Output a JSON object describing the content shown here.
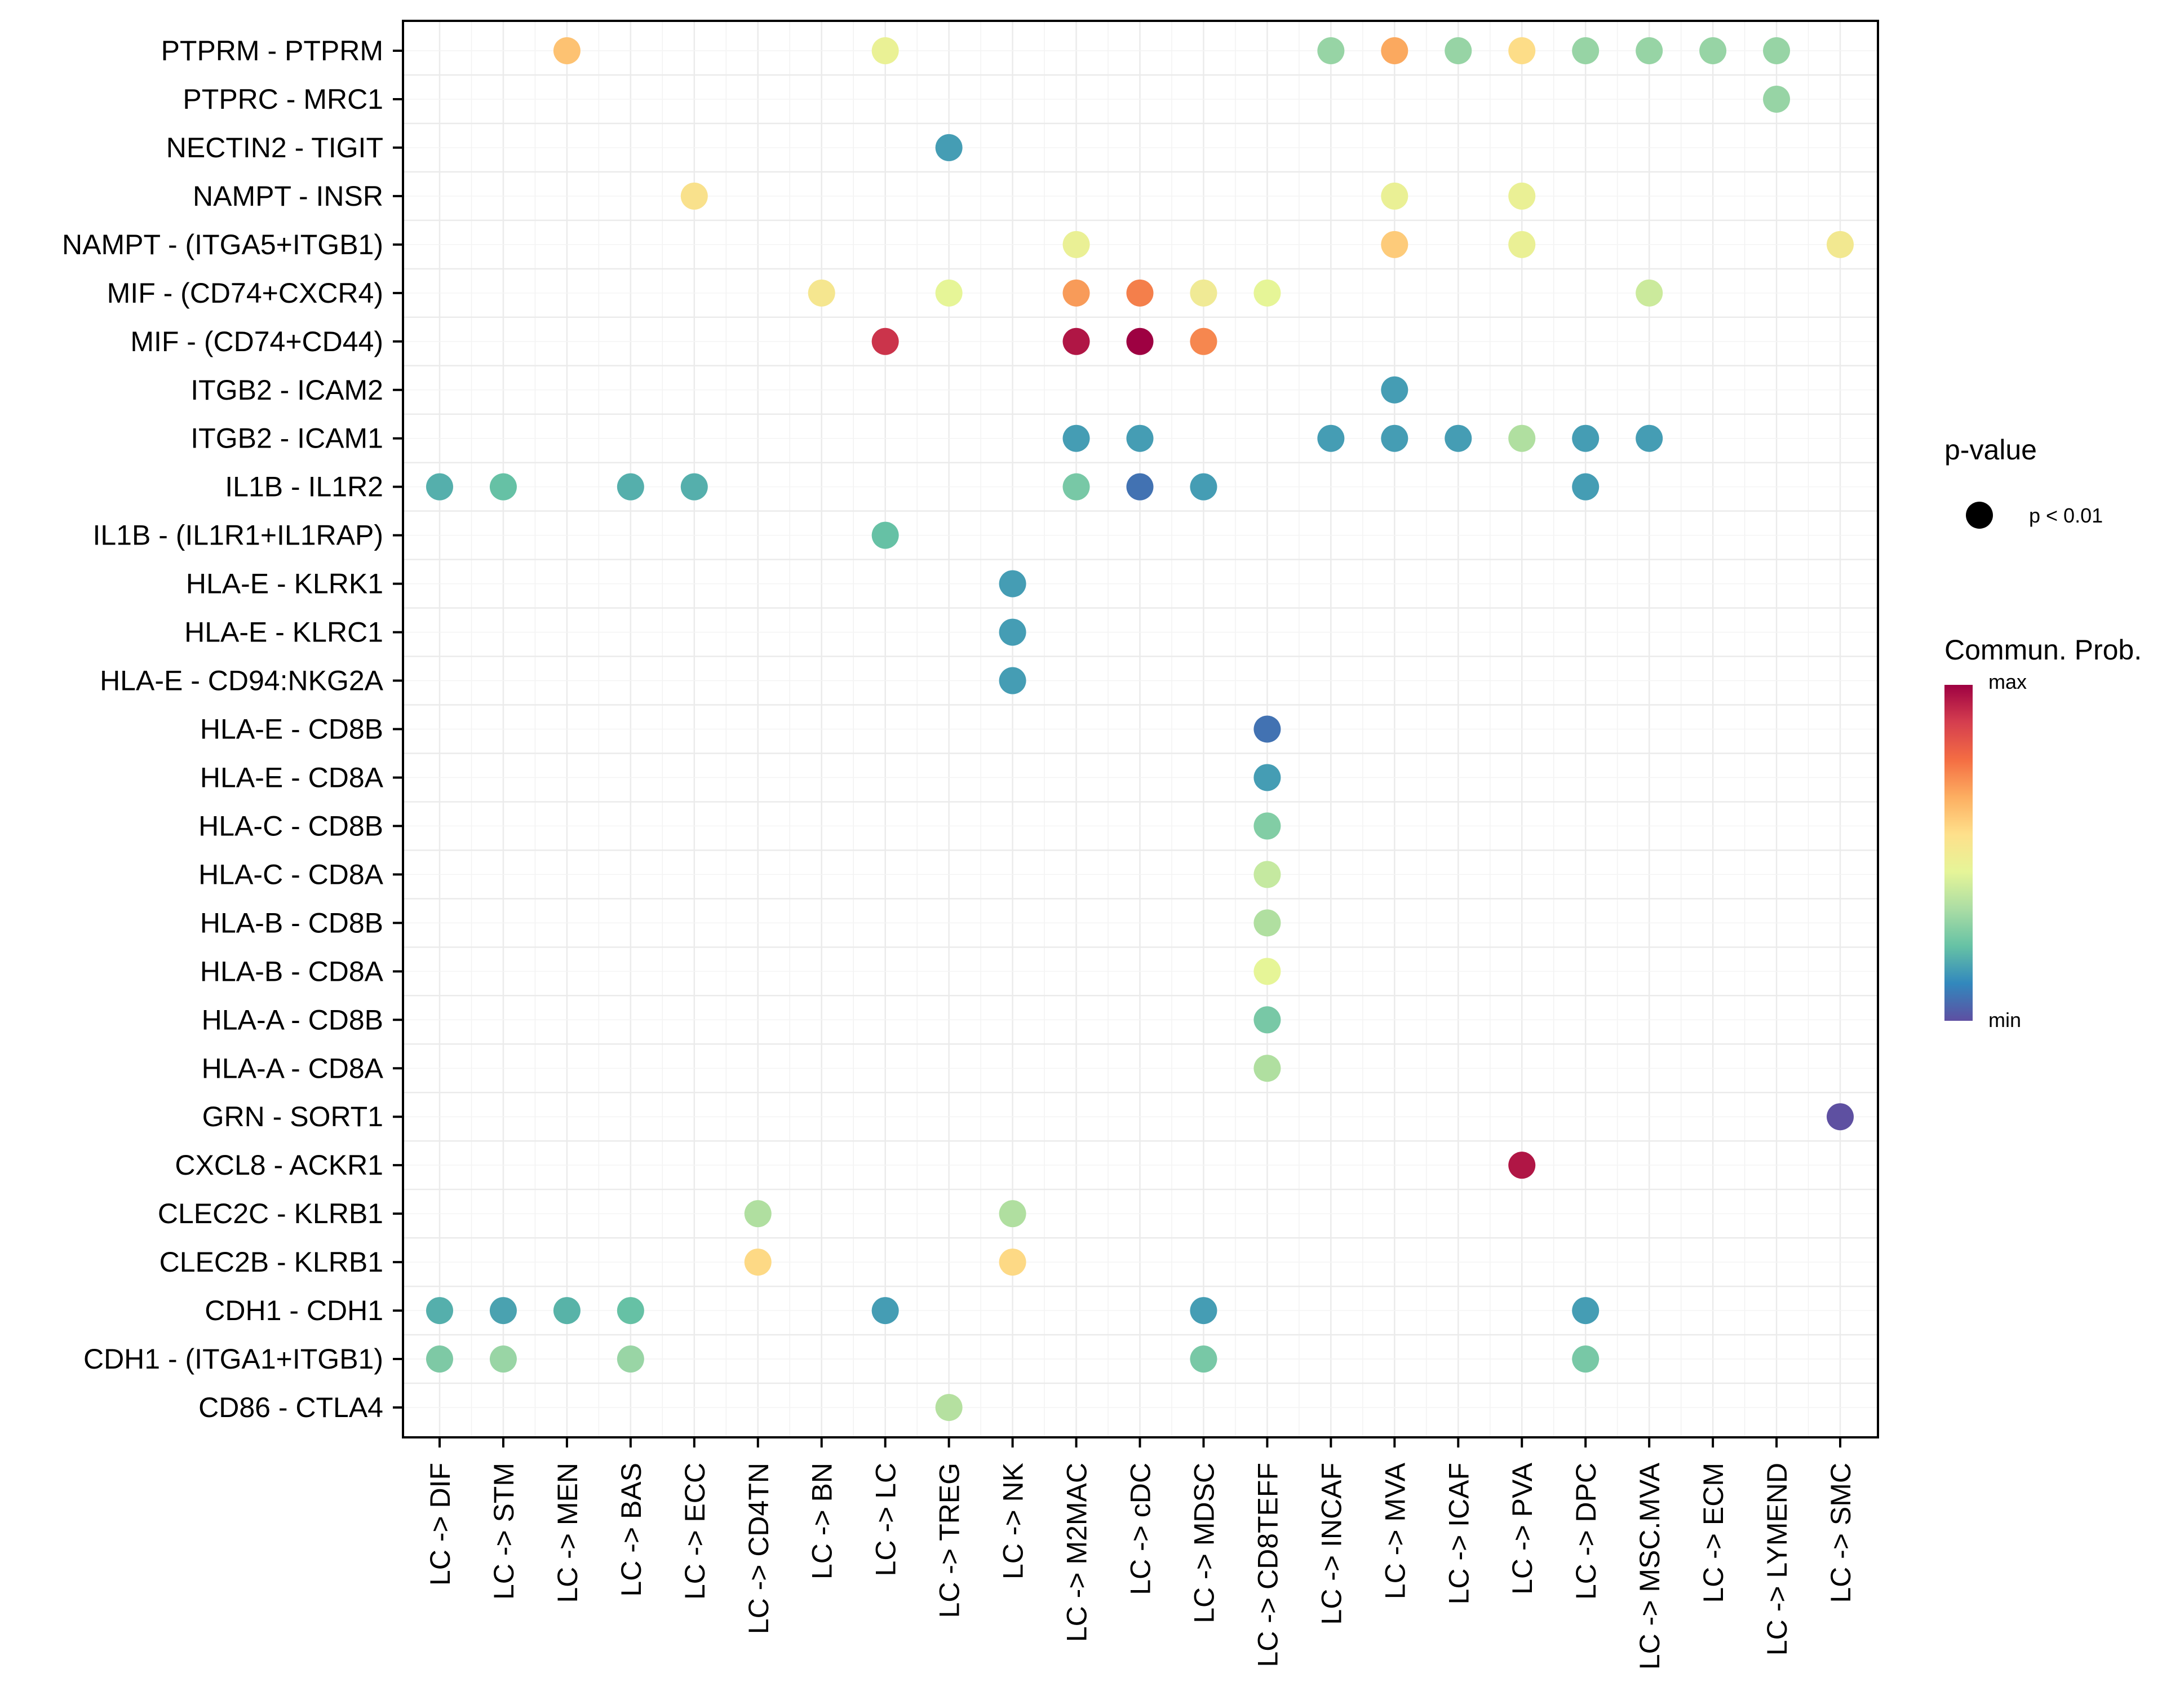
{
  "chart_data": {
    "type": "scatter",
    "subtype": "dot-matrix",
    "title": "",
    "xlabel": "",
    "ylabel": "",
    "grid": true,
    "categories_x": [
      "LC -> DIF",
      "LC -> STM",
      "LC -> MEN",
      "LC -> BAS",
      "LC -> ECC",
      "LC -> CD4TN",
      "LC -> BN",
      "LC -> LC",
      "LC -> TREG",
      "LC -> NK",
      "LC -> M2MAC",
      "LC -> cDC",
      "LC -> MDSC",
      "LC -> CD8TEFF",
      "LC -> INCAF",
      "LC -> MVA",
      "LC -> ICAF",
      "LC -> PVA",
      "LC -> DPC",
      "LC -> MSC.MVA",
      "LC -> ECM",
      "LC -> LYMEND",
      "LC -> SMC"
    ],
    "categories_y": [
      "PTPRM - PTPRM",
      "PTPRC - MRC1",
      "NECTIN2 - TIGIT",
      "NAMPT - INSR",
      "NAMPT - (ITGA5+ITGB1)",
      "MIF - (CD74+CXCR4)",
      "MIF - (CD74+CD44)",
      "ITGB2 - ICAM2",
      "ITGB2 - ICAM1",
      "IL1B - IL1R2",
      "IL1B - (IL1R1+IL1RAP)",
      "HLA-E - KLRK1",
      "HLA-E - KLRC1",
      "HLA-E - CD94:NKG2A",
      "HLA-E - CD8B",
      "HLA-E - CD8A",
      "HLA-C - CD8B",
      "HLA-C - CD8A",
      "HLA-B - CD8B",
      "HLA-B - CD8A",
      "HLA-A - CD8B",
      "HLA-A - CD8A",
      "GRN - SORT1",
      "CXCL8 - ACKR1",
      "CLEC2C - KLRB1",
      "CLEC2B - KLRB1",
      "CDH1 - CDH1",
      "CDH1 - (ITGA1+ITGB1)",
      "CD86 - CTLA4"
    ],
    "points": [
      {
        "y": "PTPRM - PTPRM",
        "x": "LC -> MEN",
        "prob": 0.68,
        "color": "#fdc272"
      },
      {
        "y": "PTPRM - PTPRM",
        "x": "LC -> LC",
        "prob": 0.5,
        "color": "#eaf195"
      },
      {
        "y": "PTPRM - PTPRM",
        "x": "LC -> INCAF",
        "prob": 0.33,
        "color": "#97d4a5"
      },
      {
        "y": "PTPRM - PTPRM",
        "x": "LC -> MVA",
        "prob": 0.72,
        "color": "#fba95f"
      },
      {
        "y": "PTPRM - PTPRM",
        "x": "LC -> ICAF",
        "prob": 0.33,
        "color": "#97d4a5"
      },
      {
        "y": "PTPRM - PTPRM",
        "x": "LC -> PVA",
        "prob": 0.6,
        "color": "#fddd88"
      },
      {
        "y": "PTPRM - PTPRM",
        "x": "LC -> DPC",
        "prob": 0.33,
        "color": "#97d4a5"
      },
      {
        "y": "PTPRM - PTPRM",
        "x": "LC -> MSC.MVA",
        "prob": 0.33,
        "color": "#97d4a5"
      },
      {
        "y": "PTPRM - PTPRM",
        "x": "LC -> ECM",
        "prob": 0.33,
        "color": "#97d4a5"
      },
      {
        "y": "PTPRM - PTPRM",
        "x": "LC -> LYMEND",
        "prob": 0.33,
        "color": "#97d4a5"
      },
      {
        "y": "PTPRC - MRC1",
        "x": "LC -> LYMEND",
        "prob": 0.33,
        "color": "#97d4a5"
      },
      {
        "y": "NECTIN2 - TIGIT",
        "x": "LC -> TREG",
        "prob": 0.15,
        "color": "#459db4"
      },
      {
        "y": "NAMPT - INSR",
        "x": "LC -> ECC",
        "prob": 0.58,
        "color": "#f9e18c"
      },
      {
        "y": "NAMPT - INSR",
        "x": "LC -> MVA",
        "prob": 0.5,
        "color": "#eaf095"
      },
      {
        "y": "NAMPT - INSR",
        "x": "LC -> PVA",
        "prob": 0.5,
        "color": "#eaf095"
      },
      {
        "y": "NAMPT - (ITGA5+ITGB1)",
        "x": "LC -> M2MAC",
        "prob": 0.5,
        "color": "#eaf095"
      },
      {
        "y": "NAMPT - (ITGA5+ITGB1)",
        "x": "LC -> MVA",
        "prob": 0.64,
        "color": "#fdcb7a"
      },
      {
        "y": "NAMPT - (ITGA5+ITGB1)",
        "x": "LC -> PVA",
        "prob": 0.5,
        "color": "#eaf095"
      },
      {
        "y": "NAMPT - (ITGA5+ITGB1)",
        "x": "LC -> SMC",
        "prob": 0.55,
        "color": "#f2e890"
      },
      {
        "y": "MIF - (CD74+CXCR4)",
        "x": "LC -> BN",
        "prob": 0.56,
        "color": "#f5e68f"
      },
      {
        "y": "MIF - (CD74+CXCR4)",
        "x": "LC -> TREG",
        "prob": 0.49,
        "color": "#e6f597"
      },
      {
        "y": "MIF - (CD74+CXCR4)",
        "x": "LC -> M2MAC",
        "prob": 0.76,
        "color": "#f89b59"
      },
      {
        "y": "MIF - (CD74+CXCR4)",
        "x": "LC -> cDC",
        "prob": 0.8,
        "color": "#f47f4b"
      },
      {
        "y": "MIF - (CD74+CXCR4)",
        "x": "LC -> MDSC",
        "prob": 0.54,
        "color": "#f0ea95"
      },
      {
        "y": "MIF - (CD74+CXCR4)",
        "x": "LC -> CD8TEFF",
        "prob": 0.49,
        "color": "#e6f597"
      },
      {
        "y": "MIF - (CD74+CXCR4)",
        "x": "LC -> MSC.MVA",
        "prob": 0.45,
        "color": "#cbea9c"
      },
      {
        "y": "MIF - (CD74+CD44)",
        "x": "LC -> LC",
        "prob": 0.9,
        "color": "#cb344b"
      },
      {
        "y": "MIF - (CD74+CD44)",
        "x": "LC -> M2MAC",
        "prob": 0.96,
        "color": "#b01645"
      },
      {
        "y": "MIF - (CD74+CD44)",
        "x": "LC -> cDC",
        "prob": 1.0,
        "color": "#9e0142"
      },
      {
        "y": "MIF - (CD74+CD44)",
        "x": "LC -> MDSC",
        "prob": 0.78,
        "color": "#f6874f"
      },
      {
        "y": "ITGB2 - ICAM2",
        "x": "LC -> MVA",
        "prob": 0.15,
        "color": "#459db4"
      },
      {
        "y": "ITGB2 - ICAM1",
        "x": "LC -> M2MAC",
        "prob": 0.15,
        "color": "#459db4"
      },
      {
        "y": "ITGB2 - ICAM1",
        "x": "LC -> cDC",
        "prob": 0.15,
        "color": "#459db4"
      },
      {
        "y": "ITGB2 - ICAM1",
        "x": "LC -> INCAF",
        "prob": 0.15,
        "color": "#459db4"
      },
      {
        "y": "ITGB2 - ICAM1",
        "x": "LC -> MVA",
        "prob": 0.15,
        "color": "#459db4"
      },
      {
        "y": "ITGB2 - ICAM1",
        "x": "LC -> ICAF",
        "prob": 0.15,
        "color": "#459db4"
      },
      {
        "y": "ITGB2 - ICAM1",
        "x": "LC -> PVA",
        "prob": 0.38,
        "color": "#b0dfa0"
      },
      {
        "y": "ITGB2 - ICAM1",
        "x": "LC -> DPC",
        "prob": 0.15,
        "color": "#459db4"
      },
      {
        "y": "ITGB2 - ICAM1",
        "x": "LC -> MSC.MVA",
        "prob": 0.15,
        "color": "#459db4"
      },
      {
        "y": "IL1B - IL1R2",
        "x": "LC -> DIF",
        "prob": 0.22,
        "color": "#55afac"
      },
      {
        "y": "IL1B - IL1R2",
        "x": "LC -> STM",
        "prob": 0.27,
        "color": "#66c1a5"
      },
      {
        "y": "IL1B - IL1R2",
        "x": "LC -> BAS",
        "prob": 0.22,
        "color": "#55afac"
      },
      {
        "y": "IL1B - IL1R2",
        "x": "LC -> ECC",
        "prob": 0.22,
        "color": "#55afac"
      },
      {
        "y": "IL1B - IL1R2",
        "x": "LC -> M2MAC",
        "prob": 0.29,
        "color": "#78c8a6"
      },
      {
        "y": "IL1B - IL1R2",
        "x": "LC -> cDC",
        "prob": 0.07,
        "color": "#4272b2"
      },
      {
        "y": "IL1B - IL1R2",
        "x": "LC -> MDSC",
        "prob": 0.15,
        "color": "#459db4"
      },
      {
        "y": "IL1B - IL1R2",
        "x": "LC -> DPC",
        "prob": 0.15,
        "color": "#459db4"
      },
      {
        "y": "IL1B - (IL1R1+IL1RAP)",
        "x": "LC -> LC",
        "prob": 0.27,
        "color": "#66c1a5"
      },
      {
        "y": "HLA-E - KLRK1",
        "x": "LC -> NK",
        "prob": 0.15,
        "color": "#459db4"
      },
      {
        "y": "HLA-E - KLRC1",
        "x": "LC -> NK",
        "prob": 0.15,
        "color": "#459db4"
      },
      {
        "y": "HLA-E - CD94:NKG2A",
        "x": "LC -> NK",
        "prob": 0.15,
        "color": "#459db4"
      },
      {
        "y": "HLA-E - CD8B",
        "x": "LC -> CD8TEFF",
        "prob": 0.07,
        "color": "#4272b2"
      },
      {
        "y": "HLA-E - CD8A",
        "x": "LC -> CD8TEFF",
        "prob": 0.15,
        "color": "#459db4"
      },
      {
        "y": "HLA-C - CD8B",
        "x": "LC -> CD8TEFF",
        "prob": 0.31,
        "color": "#82cda5"
      },
      {
        "y": "HLA-C - CD8A",
        "x": "LC -> CD8TEFF",
        "prob": 0.44,
        "color": "#c5e9a0"
      },
      {
        "y": "HLA-B - CD8B",
        "x": "LC -> CD8TEFF",
        "prob": 0.38,
        "color": "#b0dfa0"
      },
      {
        "y": "HLA-B - CD8A",
        "x": "LC -> CD8TEFF",
        "prob": 0.49,
        "color": "#e6f597"
      },
      {
        "y": "HLA-A - CD8B",
        "x": "LC -> CD8TEFF",
        "prob": 0.29,
        "color": "#78c8a6"
      },
      {
        "y": "HLA-A - CD8A",
        "x": "LC -> CD8TEFF",
        "prob": 0.38,
        "color": "#b0dfa0"
      },
      {
        "y": "GRN - SORT1",
        "x": "LC -> SMC",
        "prob": 0.0,
        "color": "#5e50a1"
      },
      {
        "y": "CXCL8 - ACKR1",
        "x": "LC -> PVA",
        "prob": 0.96,
        "color": "#b01645"
      },
      {
        "y": "CLEC2C - KLRB1",
        "x": "LC -> CD4TN",
        "prob": 0.38,
        "color": "#b0dfa0"
      },
      {
        "y": "CLEC2C - KLRB1",
        "x": "LC -> NK",
        "prob": 0.38,
        "color": "#b0dfa0"
      },
      {
        "y": "CLEC2B - KLRB1",
        "x": "LC -> CD4TN",
        "prob": 0.62,
        "color": "#fdd985"
      },
      {
        "y": "CLEC2B - KLRB1",
        "x": "LC -> NK",
        "prob": 0.62,
        "color": "#fdd985"
      },
      {
        "y": "CDH1 - CDH1",
        "x": "LC -> DIF",
        "prob": 0.22,
        "color": "#55afac"
      },
      {
        "y": "CDH1 - CDH1",
        "x": "LC -> STM",
        "prob": 0.17,
        "color": "#4aa2b0"
      },
      {
        "y": "CDH1 - CDH1",
        "x": "LC -> MEN",
        "prob": 0.24,
        "color": "#58b3a8"
      },
      {
        "y": "CDH1 - CDH1",
        "x": "LC -> BAS",
        "prob": 0.27,
        "color": "#66c1a5"
      },
      {
        "y": "CDH1 - CDH1",
        "x": "LC -> LC",
        "prob": 0.15,
        "color": "#459db4"
      },
      {
        "y": "CDH1 - CDH1",
        "x": "LC -> MDSC",
        "prob": 0.15,
        "color": "#459db4"
      },
      {
        "y": "CDH1 - CDH1",
        "x": "LC -> DPC",
        "prob": 0.15,
        "color": "#459db4"
      },
      {
        "y": "CDH1 - (ITGA1+ITGB1)",
        "x": "LC -> DIF",
        "prob": 0.3,
        "color": "#7ec9a5"
      },
      {
        "y": "CDH1 - (ITGA1+ITGB1)",
        "x": "LC -> STM",
        "prob": 0.34,
        "color": "#99d5a5"
      },
      {
        "y": "CDH1 - (ITGA1+ITGB1)",
        "x": "LC -> BAS",
        "prob": 0.34,
        "color": "#99d5a5"
      },
      {
        "y": "CDH1 - (ITGA1+ITGB1)",
        "x": "LC -> MDSC",
        "prob": 0.29,
        "color": "#78c8a6"
      },
      {
        "y": "CDH1 - (ITGA1+ITGB1)",
        "x": "LC -> DPC",
        "prob": 0.29,
        "color": "#78c8a6"
      },
      {
        "y": "CD86 - CTLA4",
        "x": "LC -> TREG",
        "prob": 0.4,
        "color": "#b5e0a0"
      }
    ],
    "legend": {
      "position": "right",
      "pvalue": {
        "title": "p-value",
        "entries": [
          {
            "label": "p < 0.01",
            "color": "#000000"
          }
        ]
      },
      "colorbar": {
        "title": "Commun. Prob.",
        "max_label": "max",
        "min_label": "min",
        "palette": [
          "#5e4fa2",
          "#3288bd",
          "#66c2a5",
          "#abdda4",
          "#e6f598",
          "#fee08b",
          "#fdae61",
          "#f46d43",
          "#d53e4f",
          "#9e0142"
        ]
      }
    }
  }
}
